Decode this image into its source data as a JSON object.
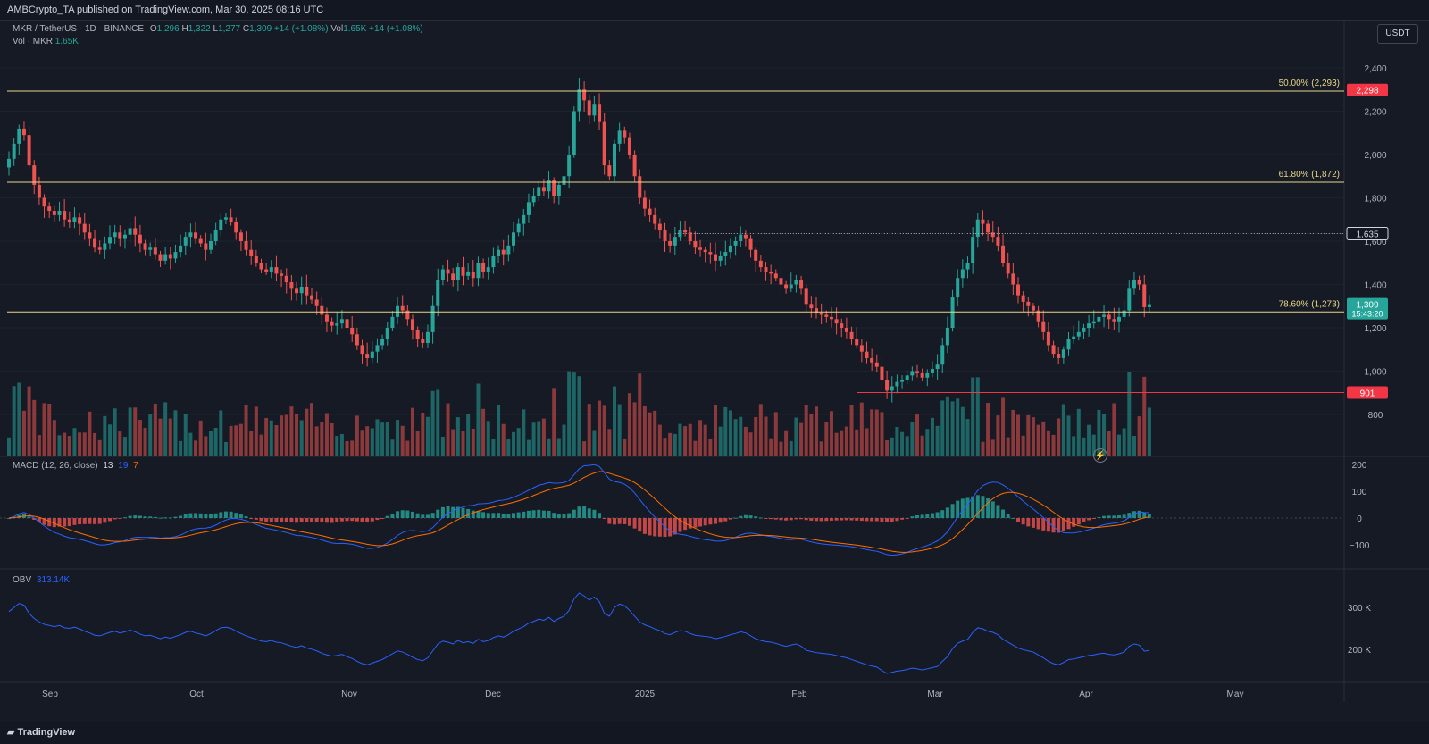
{
  "header": {
    "publisher_line": "AMBCrypto_TA published on TradingView.com, Mar 30, 2025 08:16 UTC"
  },
  "legend": {
    "symbol": "MKR / TetherUS · 1D · BINANCE",
    "o_label": "O",
    "o": "1,296",
    "h_label": "H",
    "h": "1,322",
    "l_label": "L",
    "l": "1,277",
    "c_label": "C",
    "c": "1,309",
    "change": "+14 (+1.08%)",
    "vol_label": "Vol",
    "vol_value": "1.65K",
    "vol_change": "+14 (+1.08%)",
    "vol_line_label": "Vol · MKR",
    "vol_line_value": "1.65K"
  },
  "currency_button": "USDT",
  "macd_legend": {
    "label": "MACD (12, 26, close)",
    "v1": "13",
    "v2": "19",
    "v3": "7"
  },
  "obv_legend": {
    "label": "OBV",
    "value": "313.14K"
  },
  "footer": {
    "logo": "TradingView"
  },
  "colors": {
    "bull": "#26a69a",
    "bear": "#ef5350",
    "fib": "#e8d68a",
    "macd_line": "#2962ff",
    "signal_line": "#ff6d00",
    "obv_line": "#2962ff",
    "price_badge_green": "#26a69a",
    "level_red": "#f23645"
  },
  "chart_data": {
    "type": "candlestick",
    "symbol": "MKR / TetherUS",
    "timeframe": "1D",
    "exchange": "BINANCE",
    "x_tick_labels": [
      "Sep",
      "Oct",
      "Nov",
      "Dec",
      "2025",
      "Feb",
      "Mar",
      "Apr",
      "May"
    ],
    "y_tick_labels": [
      "2,400",
      "2,200",
      "2,000",
      "1,800",
      "1,600",
      "1,400",
      "1,200",
      "1,000",
      "800"
    ],
    "ylim": [
      700,
      2450
    ],
    "fib_levels": [
      {
        "label": "50.00% (2,293)",
        "value": 2293
      },
      {
        "label": "61.80% (1,872)",
        "value": 1872
      },
      {
        "label": "78.60% (1,273)",
        "value": 1273
      }
    ],
    "price_badges": [
      {
        "text": "2,298",
        "value": 2298,
        "color": "red"
      },
      {
        "text": "1,635",
        "value": 1635,
        "color": "white"
      },
      {
        "text": "1,309",
        "value": 1309,
        "color": "green",
        "countdown": "15:43:20"
      },
      {
        "text": "901",
        "value": 901,
        "color": "red"
      }
    ],
    "horizontal_lines": [
      {
        "value": 1635,
        "style": "dotted",
        "from": "Jan 1"
      },
      {
        "value": 901,
        "style": "solid",
        "color": "red",
        "from": "Feb 7"
      }
    ],
    "close_series": [
      1980,
      2050,
      2120,
      2090,
      1950,
      1860,
      1800,
      1760,
      1740,
      1720,
      1740,
      1700,
      1690,
      1710,
      1680,
      1640,
      1610,
      1570,
      1560,
      1590,
      1620,
      1640,
      1610,
      1630,
      1660,
      1630,
      1590,
      1560,
      1570,
      1540,
      1510,
      1540,
      1520,
      1550,
      1580,
      1620,
      1640,
      1610,
      1590,
      1560,
      1600,
      1650,
      1700,
      1710,
      1690,
      1640,
      1600,
      1560,
      1530,
      1500,
      1470,
      1460,
      1480,
      1450,
      1440,
      1410,
      1380,
      1360,
      1390,
      1350,
      1330,
      1300,
      1260,
      1230,
      1210,
      1220,
      1240,
      1200,
      1170,
      1120,
      1080,
      1060,
      1090,
      1120,
      1150,
      1200,
      1250,
      1300,
      1280,
      1240,
      1190,
      1150,
      1130,
      1180,
      1300,
      1420,
      1470,
      1450,
      1420,
      1480,
      1440,
      1460,
      1430,
      1500,
      1460,
      1480,
      1530,
      1560,
      1540,
      1580,
      1640,
      1680,
      1720,
      1780,
      1810,
      1850,
      1830,
      1880,
      1810,
      1860,
      1900,
      2000,
      2200,
      2300,
      2250,
      2180,
      2230,
      2150,
      1950,
      1900,
      2050,
      2110,
      2080,
      2000,
      1900,
      1800,
      1750,
      1720,
      1680,
      1650,
      1600,
      1580,
      1620,
      1650,
      1640,
      1600,
      1570,
      1560,
      1550,
      1540,
      1510,
      1530,
      1550,
      1580,
      1600,
      1630,
      1610,
      1560,
      1510,
      1480,
      1460,
      1450,
      1430,
      1400,
      1380,
      1400,
      1420,
      1380,
      1310,
      1290,
      1270,
      1260,
      1250,
      1240,
      1220,
      1200,
      1180,
      1150,
      1120,
      1090,
      1060,
      1040,
      1020,
      960,
      910,
      930,
      950,
      960,
      980,
      1000,
      990,
      970,
      990,
      1010,
      1030,
      1120,
      1200,
      1340,
      1430,
      1470,
      1500,
      1620,
      1700,
      1680,
      1640,
      1620,
      1580,
      1500,
      1450,
      1400,
      1350,
      1320,
      1300,
      1280,
      1230,
      1180,
      1120,
      1080,
      1060,
      1100,
      1150,
      1160,
      1180,
      1200,
      1220,
      1230,
      1250,
      1260,
      1240,
      1230,
      1250,
      1280,
      1380,
      1420,
      1400,
      1295,
      1309
    ],
    "candles_start": "Aug 22, 2024",
    "candles_end": "Mar 30, 2025",
    "last_price": 1309,
    "macd": {
      "label": "MACD (12, 26, close)",
      "values": {
        "histogram": 13,
        "macd": 19,
        "signal": 7
      },
      "y_tick_labels": [
        "200",
        "100",
        "0",
        "−100"
      ],
      "ylim": [
        -160,
        210
      ]
    },
    "obv": {
      "label": "OBV",
      "value": "313.14K",
      "y_tick_labels": [
        "300 K",
        "200 K"
      ]
    }
  }
}
